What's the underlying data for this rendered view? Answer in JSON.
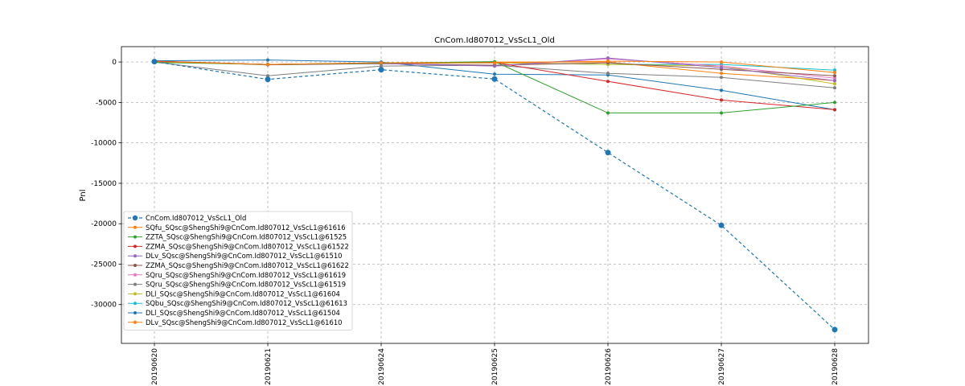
{
  "chart_data": {
    "type": "line",
    "title": "CnCom.Id807012_VsScL1_Old",
    "xlabel": "",
    "ylabel": "Pnl",
    "categories": [
      "20190620",
      "20190621",
      "20190624",
      "20190625",
      "20190626",
      "20190627",
      "20190628"
    ],
    "yticks": [
      0,
      -5000,
      -10000,
      -15000,
      -20000,
      -25000,
      -30000
    ],
    "ylim": [
      -34800,
      1900
    ],
    "grid": true,
    "legend": "lower-left",
    "series": [
      {
        "name": "CnCom.Id807012_VsScL1_Old",
        "color": "#1f77b4",
        "dashed": true,
        "marker_size": 3.5,
        "line_width": 1.2,
        "values": [
          50,
          -2150,
          -950,
          -2100,
          -11200,
          -20200,
          -33100
        ]
      },
      {
        "name": "SQfu_SQsc@ShengShi9@CnCom.Id807012_VsScL1@61616",
        "color": "#ff7f0e",
        "values": [
          50,
          -300,
          -100,
          -100,
          100,
          0,
          -1300
        ]
      },
      {
        "name": "ZZTA_SQsc@ShengShi9@CnCom.Id807012_VsScL1@61525",
        "color": "#2ca02c",
        "values": [
          -50,
          -300,
          -150,
          50,
          -6300,
          -6300,
          -5000
        ]
      },
      {
        "name": "ZZMA_SQsc@ShengShi9@CnCom.Id807012_VsScL1@61522",
        "color": "#d62728",
        "values": [
          100,
          -300,
          -150,
          -50,
          -2400,
          -4700,
          -5900
        ]
      },
      {
        "name": "DLv_SQsc@ShengShi9@CnCom.Id807012_VsScL1@61510",
        "color": "#9467bd",
        "values": [
          50,
          -300,
          -200,
          -500,
          500,
          -700,
          -2300
        ]
      },
      {
        "name": "ZZMA_SQsc@ShengShi9@CnCom.Id807012_VsScL1@61622",
        "color": "#8c564b",
        "values": [
          100,
          -350,
          -200,
          -400,
          -100,
          -900,
          -1700
        ]
      },
      {
        "name": "SQru_SQsc@ShengShi9@CnCom.Id807012_VsScL1@61619",
        "color": "#e377c2",
        "values": [
          50,
          -300,
          -150,
          -500,
          400,
          -500,
          -2000
        ]
      },
      {
        "name": "SQru_SQsc@ShengShi9@CnCom.Id807012_VsScL1@61519",
        "color": "#7f7f7f",
        "values": [
          0,
          -1700,
          -500,
          -400,
          -1400,
          -1900,
          -3200
        ]
      },
      {
        "name": "DLl_SQsc@ShengShi9@CnCom.Id807012_VsScL1@61604",
        "color": "#bcbd22",
        "values": [
          100,
          -300,
          -150,
          -100,
          -300,
          -500,
          -2700
        ]
      },
      {
        "name": "SQbu_SQsc@ShengShi9@CnCom.Id807012_VsScL1@61613",
        "color": "#17becf",
        "values": [
          100,
          -300,
          -150,
          -100,
          -300,
          -300,
          -1000
        ]
      },
      {
        "name": "DLl_SQsc@ShengShi9@CnCom.Id807012_VsScL1@61504",
        "color": "#1f77b4",
        "values": [
          150,
          250,
          0,
          -1500,
          -1600,
          -3500,
          -5900
        ]
      },
      {
        "name": "DLv_SQsc@ShengShi9@CnCom.Id807012_VsScL1@61610",
        "color": "#ff7f0e",
        "values": [
          50,
          -300,
          -100,
          0,
          0,
          -1400,
          -2300
        ]
      }
    ]
  }
}
